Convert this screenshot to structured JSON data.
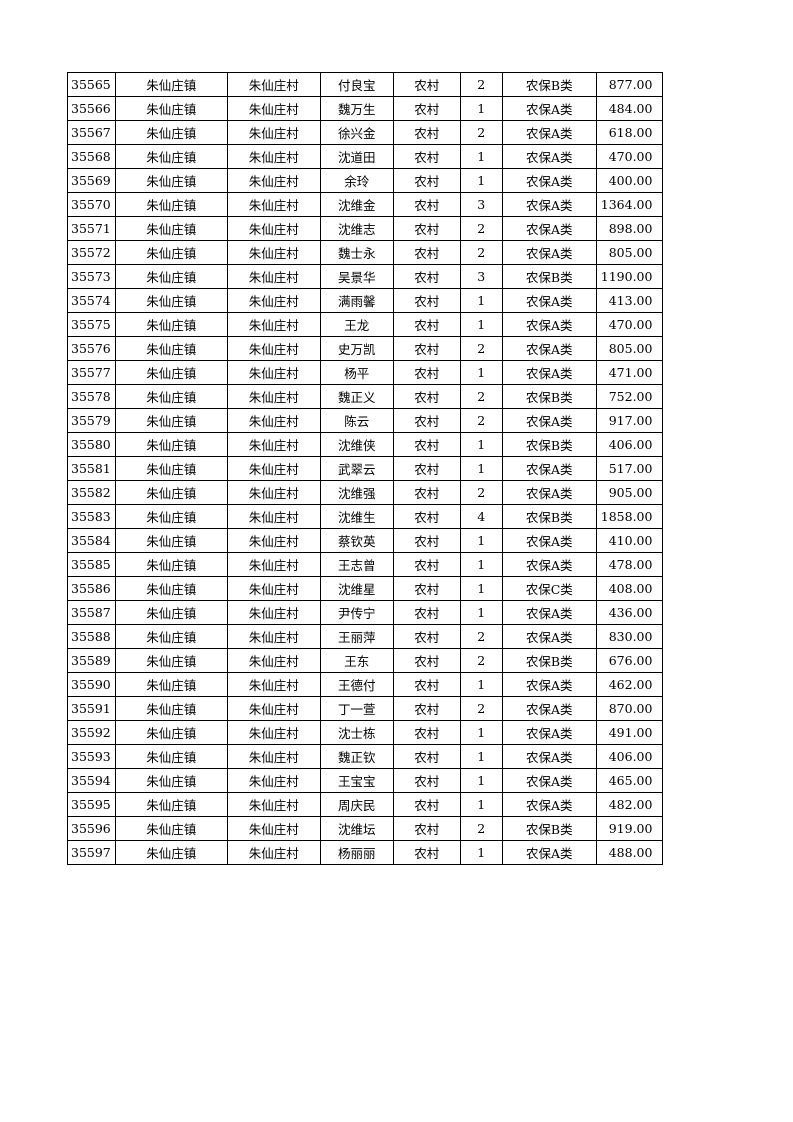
{
  "table": {
    "rows": [
      [
        "35565",
        "朱仙庄镇",
        "朱仙庄村",
        "付良宝",
        "农村",
        "2",
        "农保B类",
        "877.00"
      ],
      [
        "35566",
        "朱仙庄镇",
        "朱仙庄村",
        "魏万生",
        "农村",
        "1",
        "农保A类",
        "484.00"
      ],
      [
        "35567",
        "朱仙庄镇",
        "朱仙庄村",
        "徐兴金",
        "农村",
        "2",
        "农保A类",
        "618.00"
      ],
      [
        "35568",
        "朱仙庄镇",
        "朱仙庄村",
        "沈道田",
        "农村",
        "1",
        "农保A类",
        "470.00"
      ],
      [
        "35569",
        "朱仙庄镇",
        "朱仙庄村",
        "余玲",
        "农村",
        "1",
        "农保A类",
        "400.00"
      ],
      [
        "35570",
        "朱仙庄镇",
        "朱仙庄村",
        "沈维金",
        "农村",
        "3",
        "农保A类",
        "1364.00"
      ],
      [
        "35571",
        "朱仙庄镇",
        "朱仙庄村",
        "沈维志",
        "农村",
        "2",
        "农保A类",
        "898.00"
      ],
      [
        "35572",
        "朱仙庄镇",
        "朱仙庄村",
        "魏士永",
        "农村",
        "2",
        "农保A类",
        "805.00"
      ],
      [
        "35573",
        "朱仙庄镇",
        "朱仙庄村",
        "吴景华",
        "农村",
        "3",
        "农保B类",
        "1190.00"
      ],
      [
        "35574",
        "朱仙庄镇",
        "朱仙庄村",
        "满雨馨",
        "农村",
        "1",
        "农保A类",
        "413.00"
      ],
      [
        "35575",
        "朱仙庄镇",
        "朱仙庄村",
        "王龙",
        "农村",
        "1",
        "农保A类",
        "470.00"
      ],
      [
        "35576",
        "朱仙庄镇",
        "朱仙庄村",
        "史万凯",
        "农村",
        "2",
        "农保A类",
        "805.00"
      ],
      [
        "35577",
        "朱仙庄镇",
        "朱仙庄村",
        "杨平",
        "农村",
        "1",
        "农保A类",
        "471.00"
      ],
      [
        "35578",
        "朱仙庄镇",
        "朱仙庄村",
        "魏正义",
        "农村",
        "2",
        "农保B类",
        "752.00"
      ],
      [
        "35579",
        "朱仙庄镇",
        "朱仙庄村",
        "陈云",
        "农村",
        "2",
        "农保A类",
        "917.00"
      ],
      [
        "35580",
        "朱仙庄镇",
        "朱仙庄村",
        "沈维侠",
        "农村",
        "1",
        "农保B类",
        "406.00"
      ],
      [
        "35581",
        "朱仙庄镇",
        "朱仙庄村",
        "武翠云",
        "农村",
        "1",
        "农保A类",
        "517.00"
      ],
      [
        "35582",
        "朱仙庄镇",
        "朱仙庄村",
        "沈维强",
        "农村",
        "2",
        "农保A类",
        "905.00"
      ],
      [
        "35583",
        "朱仙庄镇",
        "朱仙庄村",
        "沈维生",
        "农村",
        "4",
        "农保B类",
        "1858.00"
      ],
      [
        "35584",
        "朱仙庄镇",
        "朱仙庄村",
        "蔡钦英",
        "农村",
        "1",
        "农保A类",
        "410.00"
      ],
      [
        "35585",
        "朱仙庄镇",
        "朱仙庄村",
        "王志曾",
        "农村",
        "1",
        "农保A类",
        "478.00"
      ],
      [
        "35586",
        "朱仙庄镇",
        "朱仙庄村",
        "沈维星",
        "农村",
        "1",
        "农保C类",
        "408.00"
      ],
      [
        "35587",
        "朱仙庄镇",
        "朱仙庄村",
        "尹传宁",
        "农村",
        "1",
        "农保A类",
        "436.00"
      ],
      [
        "35588",
        "朱仙庄镇",
        "朱仙庄村",
        "王丽萍",
        "农村",
        "2",
        "农保A类",
        "830.00"
      ],
      [
        "35589",
        "朱仙庄镇",
        "朱仙庄村",
        "王东",
        "农村",
        "2",
        "农保B类",
        "676.00"
      ],
      [
        "35590",
        "朱仙庄镇",
        "朱仙庄村",
        "王德付",
        "农村",
        "1",
        "农保A类",
        "462.00"
      ],
      [
        "35591",
        "朱仙庄镇",
        "朱仙庄村",
        "丁一萱",
        "农村",
        "2",
        "农保A类",
        "870.00"
      ],
      [
        "35592",
        "朱仙庄镇",
        "朱仙庄村",
        "沈士栋",
        "农村",
        "1",
        "农保A类",
        "491.00"
      ],
      [
        "35593",
        "朱仙庄镇",
        "朱仙庄村",
        "魏正钦",
        "农村",
        "1",
        "农保A类",
        "406.00"
      ],
      [
        "35594",
        "朱仙庄镇",
        "朱仙庄村",
        "王宝宝",
        "农村",
        "1",
        "农保A类",
        "465.00"
      ],
      [
        "35595",
        "朱仙庄镇",
        "朱仙庄村",
        "周庆民",
        "农村",
        "1",
        "农保A类",
        "482.00"
      ],
      [
        "35596",
        "朱仙庄镇",
        "朱仙庄村",
        "沈维坛",
        "农村",
        "2",
        "农保B类",
        "919.00"
      ],
      [
        "35597",
        "朱仙庄镇",
        "朱仙庄村",
        "杨丽丽",
        "农村",
        "1",
        "农保A类",
        "488.00"
      ]
    ]
  }
}
